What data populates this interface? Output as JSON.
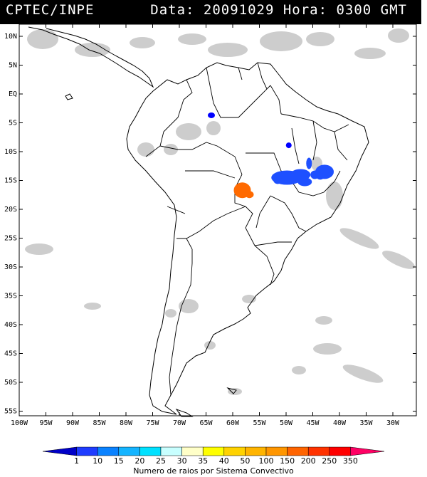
{
  "header": {
    "source": "CPTEC/INPE",
    "datetime": "Data: 20091029 Hora: 0300 GMT"
  },
  "map": {
    "lat_labels": [
      "10N",
      "5N",
      "EQ",
      "5S",
      "10S",
      "15S",
      "20S",
      "25S",
      "30S",
      "35S",
      "40S",
      "45S",
      "50S",
      "55S"
    ],
    "lon_labels": [
      "100W",
      "95W",
      "90W",
      "85W",
      "80W",
      "75W",
      "70W",
      "65W",
      "60W",
      "55W",
      "50W",
      "45W",
      "40W",
      "35W",
      "30W"
    ],
    "cloud_color": "#c8c8c8",
    "lightning_systems": [
      {
        "id": "amazon-west",
        "category": "1",
        "color": "#0000ff",
        "lon": -64.0,
        "lat": -3.7
      },
      {
        "id": "para-south",
        "category": "1",
        "color": "#0000ff",
        "lon": -49.5,
        "lat": -8.9
      },
      {
        "id": "goias-bahia",
        "category": "1-10",
        "color": "#1e50ff",
        "lon": -46.5,
        "lat": -14.5
      },
      {
        "id": "bahia-east",
        "category": "1-10",
        "color": "#1e50ff",
        "lon": -42.8,
        "lat": -13.5
      },
      {
        "id": "mato-grosso",
        "category": "150",
        "color": "#ff6a00",
        "lon": -58.2,
        "lat": -16.7
      }
    ]
  },
  "legend": {
    "values": [
      "1",
      "10",
      "15",
      "20",
      "25",
      "30",
      "35",
      "40",
      "50",
      "100",
      "150",
      "200",
      "250",
      "350"
    ],
    "colors": [
      "#0000c8",
      "#1e3cff",
      "#0a82ff",
      "#14b4ff",
      "#00e1ff",
      "#c8ffff",
      "#ffffc8",
      "#ffff00",
      "#ffd200",
      "#ffb400",
      "#ff9600",
      "#ff6400",
      "#ff3200",
      "#ff0000",
      "#ff0064"
    ],
    "caption": "Numero de raios por Sistema Convectivo"
  }
}
